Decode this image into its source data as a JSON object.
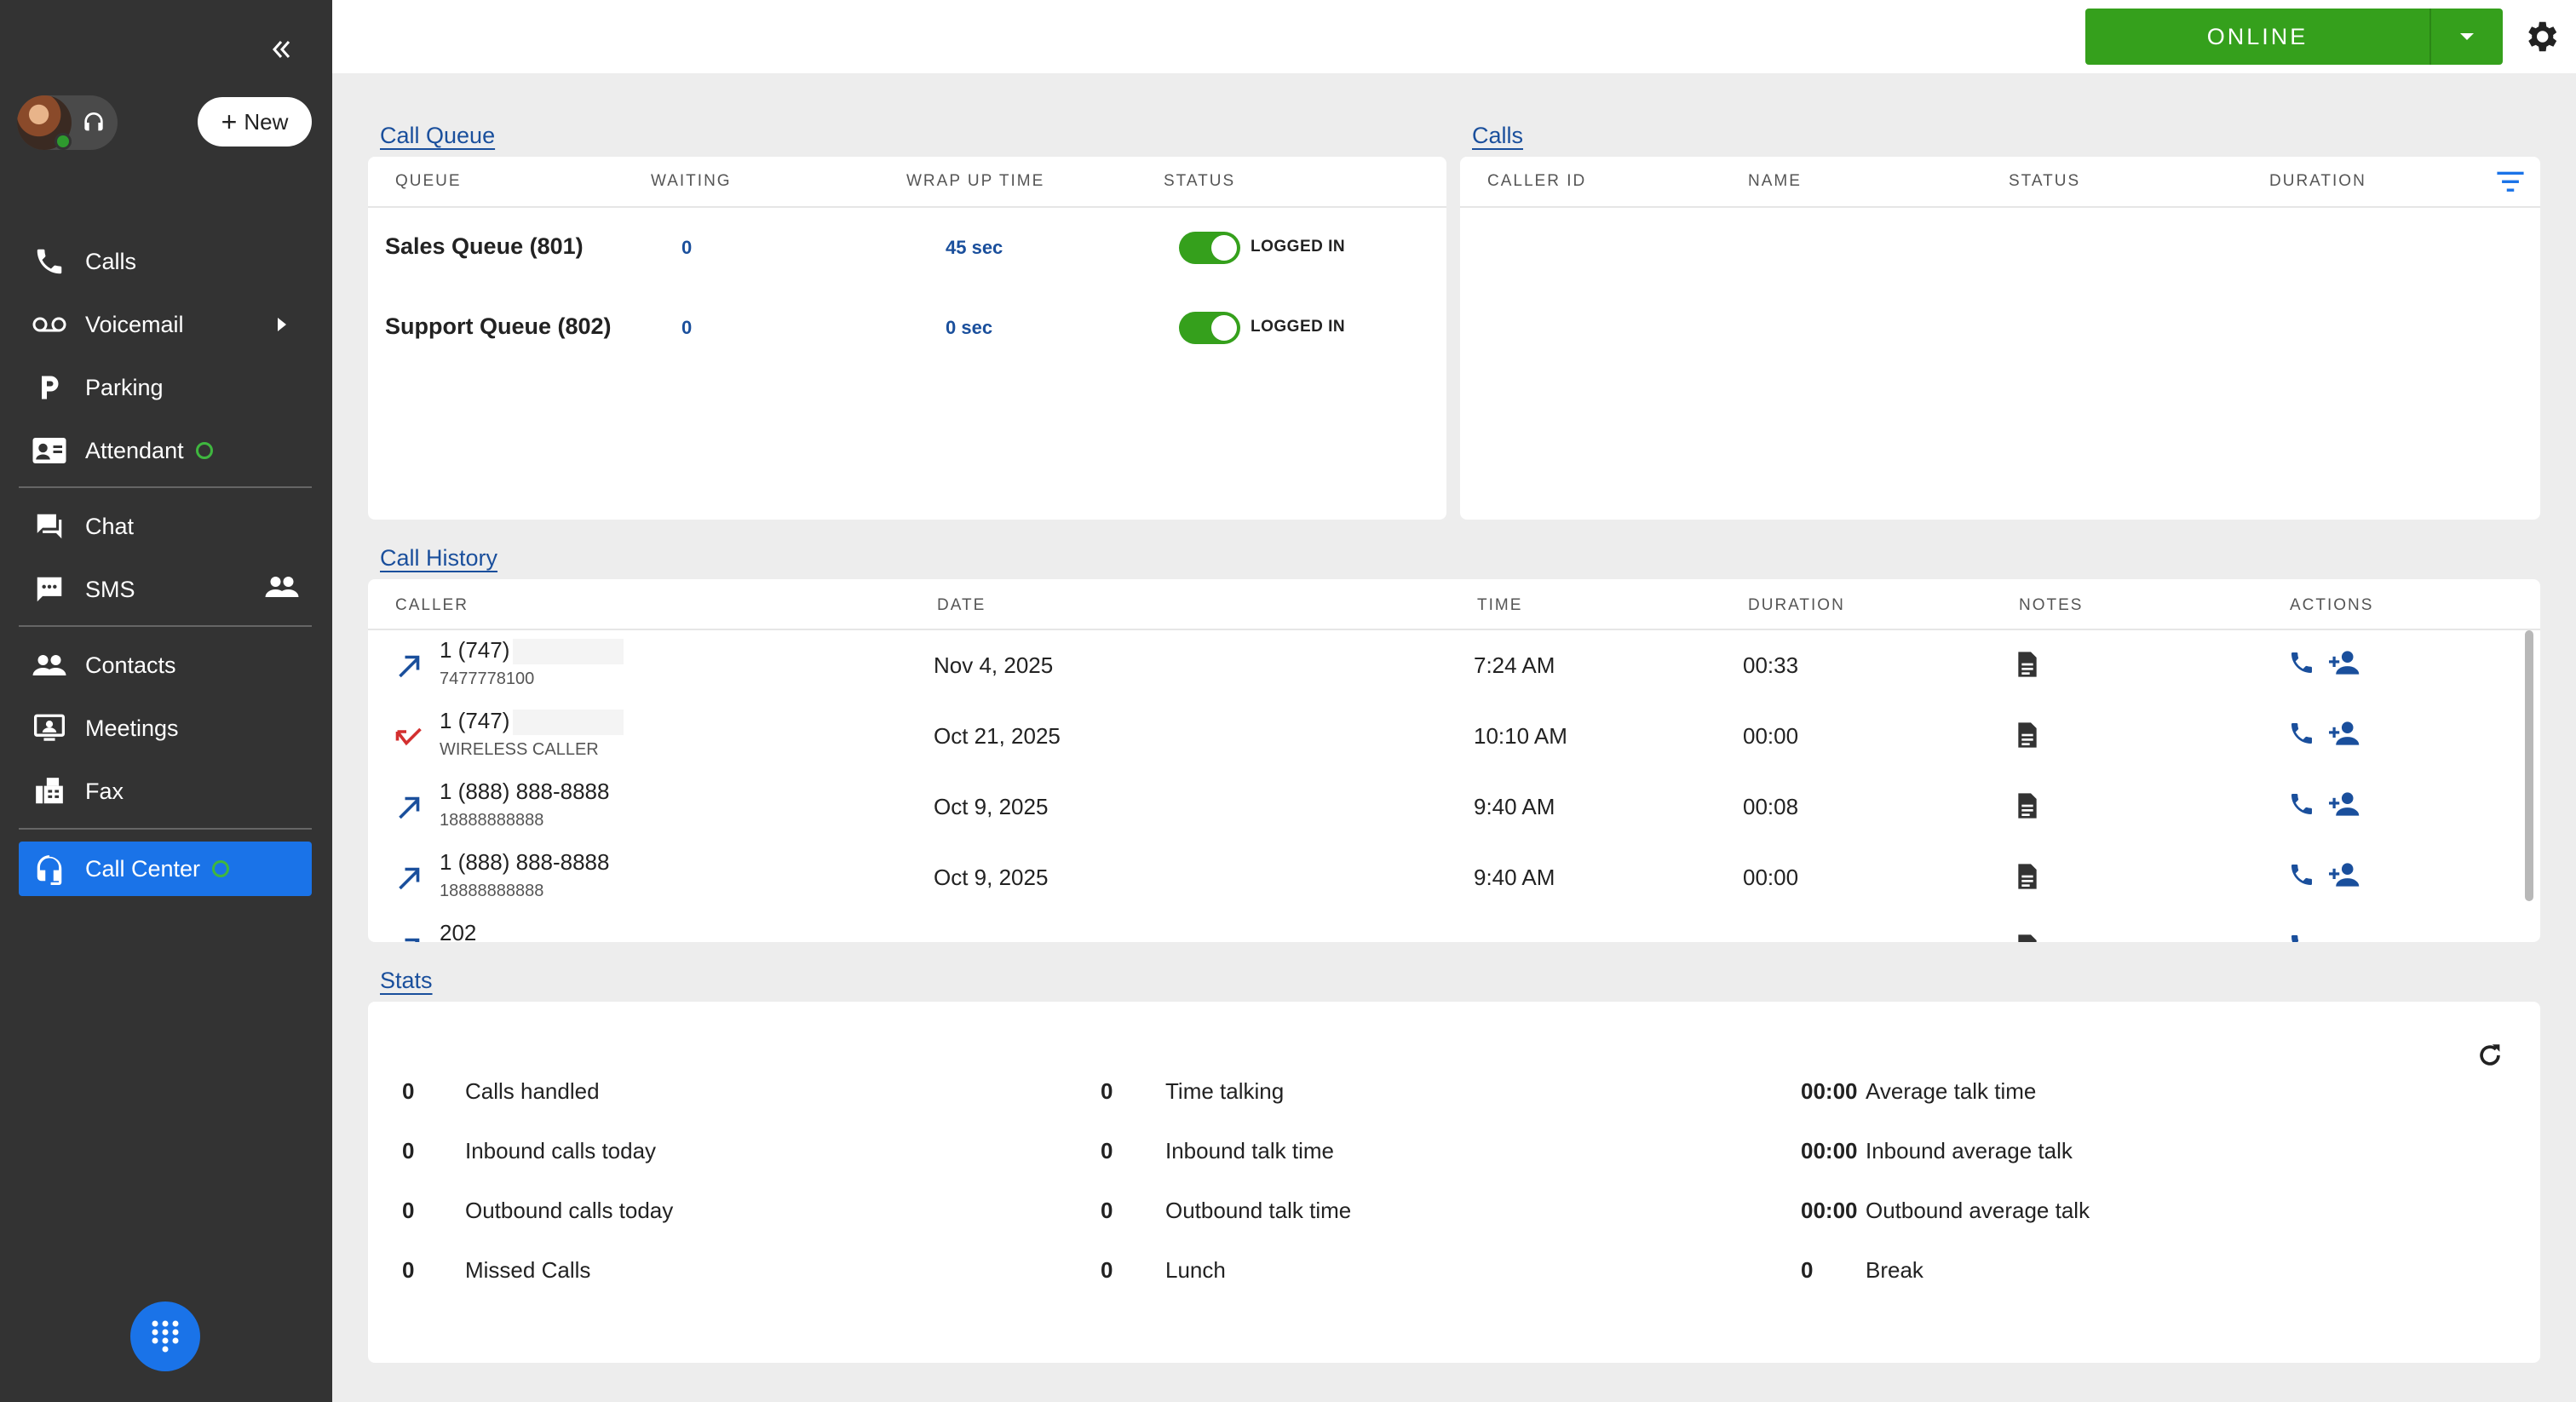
{
  "sidebar": {
    "new_label": "New",
    "items": [
      {
        "label": "Calls",
        "icon": "phone-icon"
      },
      {
        "label": "Voicemail",
        "icon": "voicemail-icon"
      },
      {
        "label": "Parking",
        "icon": "parking-icon"
      },
      {
        "label": "Attendant",
        "icon": "contact-card-icon"
      },
      {
        "label": "Chat",
        "icon": "chat-icon"
      },
      {
        "label": "SMS",
        "icon": "sms-icon"
      },
      {
        "label": "Contacts",
        "icon": "contacts-icon"
      },
      {
        "label": "Meetings",
        "icon": "meetings-icon"
      },
      {
        "label": "Fax",
        "icon": "fax-icon"
      },
      {
        "label": "Call Center",
        "icon": "headset-icon"
      }
    ]
  },
  "topbar": {
    "status_label": "ONLINE"
  },
  "call_queue": {
    "title": "Call Queue",
    "headers": [
      "QUEUE",
      "WAITING",
      "WRAP UP TIME",
      "STATUS"
    ],
    "rows": [
      {
        "queue": "Sales Queue (801)",
        "waiting": "0",
        "wrap_up": "45 sec",
        "status": "LOGGED IN",
        "toggle_on": true
      },
      {
        "queue": "Support Queue (802)",
        "waiting": "0",
        "wrap_up": "0 sec",
        "status": "LOGGED IN",
        "toggle_on": true
      }
    ]
  },
  "calls": {
    "title": "Calls",
    "headers": [
      "CALLER ID",
      "NAME",
      "STATUS",
      "DURATION"
    ]
  },
  "call_history": {
    "title": "Call History",
    "headers": [
      "CALLER",
      "DATE",
      "TIME",
      "DURATION",
      "NOTES",
      "ACTIONS"
    ],
    "rows": [
      {
        "direction": "outbound",
        "number": "1 (747)",
        "sub": "7477778100",
        "date": "Nov 4, 2025",
        "time": "7:24 AM",
        "duration": "00:33"
      },
      {
        "direction": "missed",
        "number": "1 (747)",
        "sub": "WIRELESS CALLER",
        "date": "Oct 21, 2025",
        "time": "10:10 AM",
        "duration": "00:00"
      },
      {
        "direction": "outbound",
        "number": "1 (888) 888-8888",
        "sub": "18888888888",
        "date": "Oct 9, 2025",
        "time": "9:40 AM",
        "duration": "00:08"
      },
      {
        "direction": "outbound",
        "number": "1 (888) 888-8888",
        "sub": "18888888888",
        "date": "Oct 9, 2025",
        "time": "9:40 AM",
        "duration": "00:00"
      },
      {
        "direction": "outbound",
        "number": "202",
        "sub": "",
        "date": "",
        "time": "",
        "duration": ""
      }
    ]
  },
  "stats": {
    "title": "Stats",
    "col1": [
      {
        "value": "0",
        "label": "Calls handled"
      },
      {
        "value": "0",
        "label": "Inbound calls today"
      },
      {
        "value": "0",
        "label": "Outbound calls today"
      },
      {
        "value": "0",
        "label": "Missed Calls"
      }
    ],
    "col2": [
      {
        "value": "0",
        "label": "Time talking"
      },
      {
        "value": "0",
        "label": "Inbound talk time"
      },
      {
        "value": "0",
        "label": "Outbound talk time"
      },
      {
        "value": "0",
        "label": "Lunch"
      }
    ],
    "col3": [
      {
        "value": "00:00",
        "label": "Average talk time"
      },
      {
        "value": "00:00",
        "label": "Inbound average talk"
      },
      {
        "value": "00:00",
        "label": "Outbound average talk"
      },
      {
        "value": "0",
        "label": "Break"
      }
    ]
  },
  "colors": {
    "accent": "#1a73e8",
    "online": "#35a01c",
    "link": "#1a4f9c",
    "missed": "#d32f2f"
  }
}
